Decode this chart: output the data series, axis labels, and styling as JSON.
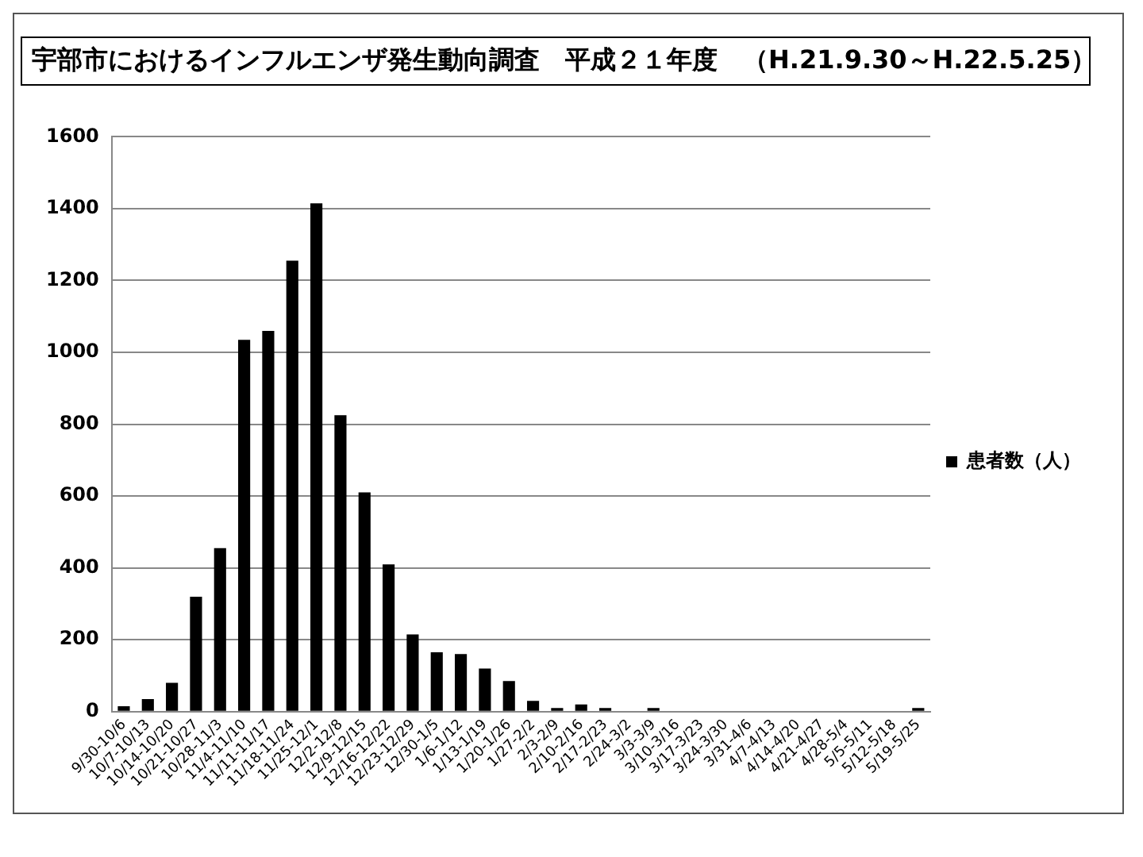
{
  "chart_data": {
    "type": "bar",
    "title": "宇部市におけるインフルエンザ発生動向調査　平成２１年度　（H.21.9.30～H.22.5.25）",
    "categories": [
      "9/30-10/6",
      "10/7-10/13",
      "10/14-10/20",
      "10/21-10/27",
      "10/28-11/3",
      "11/4-11/10",
      "11/11-11/17",
      "11/18-11/24",
      "11/25-12/1",
      "12/2-12/8",
      "12/9-12/15",
      "12/16-12/22",
      "12/23-12/29",
      "12/30-1/5",
      "1/6-1/12",
      "1/13-1/19",
      "1/20-1/26",
      "1/27-2/2",
      "2/3-2/9",
      "2/10-2/16",
      "2/17-2/23",
      "2/24-3/2",
      "3/3-3/9",
      "3/10-3/16",
      "3/17-3/23",
      "3/24-3/30",
      "3/31-4/6",
      "4/7-4/13",
      "4/14-4/20",
      "4/21-4/27",
      "4/28-5/4",
      "5/5-5/11",
      "5/12-5/18",
      "5/19-5/25"
    ],
    "series": [
      {
        "name": "患者数（人）",
        "color": "#000000",
        "values": [
          15,
          35,
          80,
          320,
          455,
          1035,
          1060,
          1255,
          1415,
          825,
          610,
          410,
          215,
          165,
          160,
          120,
          85,
          30,
          10,
          20,
          10,
          0,
          10,
          0,
          0,
          0,
          0,
          0,
          0,
          0,
          0,
          0,
          0,
          10
        ]
      }
    ],
    "ylim": [
      0,
      1600
    ],
    "yticks": [
      0,
      200,
      400,
      600,
      800,
      1000,
      1200,
      1400,
      1600
    ],
    "grid": "y",
    "legend": "right"
  }
}
